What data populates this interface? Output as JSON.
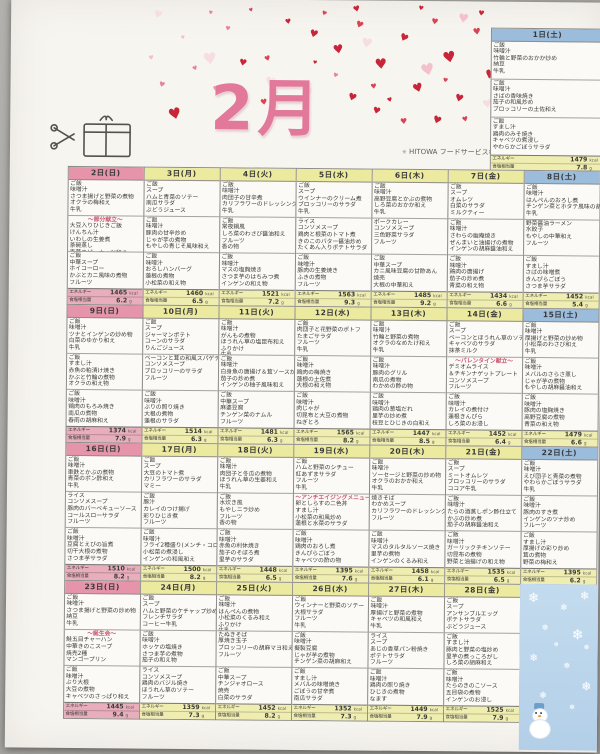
{
  "meta": {
    "month_title": "2月",
    "company": "HITOWA フードサービス株式会社"
  },
  "labels": {
    "energy": "エネルギー",
    "salt": "食塩相当量",
    "kcal": "kcal",
    "g": "g"
  },
  "colors": {
    "sunday_header": "#e594aa",
    "weekday_header": "#ecea9e",
    "saturday_header": "#9cbcdc",
    "sunday_strip": "#e9aebc",
    "weekday_strip": "#efedb0",
    "special_text": "#c9556f",
    "heart_red": "#c82538",
    "title_pink": "#e2799b",
    "snow_blue": "#b3cfe8"
  },
  "standalone_day": {
    "label": "1日(土)",
    "type": "saturday",
    "energy": "1479",
    "salt": "7.8",
    "meals": [
      [
        "ご飯",
        "味噌汁",
        "竹輪と野菜のおかか炒め",
        "納豆",
        "牛乳"
      ],
      [
        "ご飯",
        "味噌汁",
        "さばの香味焼き",
        "茄子の和風炒め",
        "ブロッコリーの土佐和え"
      ],
      [
        "ご飯",
        "すまし汁",
        "鶏肉のみそ焼き",
        "キャベツの煮浸し",
        "やわらかごぼうサラダ"
      ]
    ]
  },
  "weeks": [
    [
      {
        "label": "2日(日)",
        "type": "sunday",
        "energy": "1465",
        "salt": "6.2",
        "meals": [
          [
            "ご飯",
            "味噌汁",
            "さつま揚げと野菜の煮物",
            "オクラの梅和え",
            "牛乳"
          ],
          [
            "～節分献立～",
            "大豆入りひじきご飯",
            "けんちん汁",
            "いわしの生姜煮",
            "茶碗蒸し",
            "青菜のピーナッツ和え"
          ],
          [
            "ご飯",
            "中華スープ",
            "ホイコーロー",
            "かぶとカニ風味の煮物",
            "フルーツ"
          ]
        ]
      },
      {
        "label": "3日(月)",
        "type": "weekday",
        "energy": "1460",
        "salt": "6.5",
        "meals": [
          [
            "ご飯",
            "スープ",
            "ハムと青菜のソテー",
            "南瓜サラダ",
            "ぶどうジュース"
          ],
          [
            "ご飯",
            "味噌汁",
            "豚肉の甘辛炒め",
            "じゃが芋の煮物",
            "もやしの青じそ風味和え"
          ],
          [
            "ご飯",
            "味噌汁",
            "おろしハンバーグ",
            "蓮根の煮物",
            "小松菜の和え物"
          ]
        ]
      },
      {
        "label": "4日(火)",
        "type": "weekday",
        "energy": "1521",
        "salt": "7.2",
        "meals": [
          [
            "ご飯",
            "味噌汁",
            "肉団子の甘辛煮",
            "カリフラワーのドレッシング和え",
            "牛乳"
          ],
          [
            "ご飯",
            "常夜鍋風",
            "しろ菜のわさび醤油和え",
            "フルーツ",
            "香の物"
          ],
          [
            "ご飯",
            "味噌汁",
            "マスの塩麹焼き",
            "さつま芋のはちみつ煮",
            "インゲンの和え物"
          ]
        ]
      },
      {
        "label": "5日(水)",
        "type": "weekday",
        "energy": "1563",
        "salt": "9.3",
        "meals": [
          [
            "ご飯",
            "スープ",
            "ウインナーのクリーム煮",
            "ブロッコリーのサラダ",
            "牛乳"
          ],
          [
            "ライス",
            "コンソメスープ",
            "鶏肉と根菜のトマト煮",
            "きのこのバター醤油炒め",
            "たくあん入りポテトサラダ"
          ],
          [
            "ご飯",
            "味噌汁",
            "豚肉の生姜焼き",
            "ふきの煮物",
            "フルーツ"
          ]
        ]
      },
      {
        "label": "6日(木)",
        "type": "weekday",
        "energy": "1485",
        "salt": "9.2",
        "meals": [
          [
            "ご飯",
            "味噌汁",
            "高野豆腐とかぶの煮物",
            "しろ菜のおかか和え",
            "牛乳"
          ],
          [
            "ポークカレー",
            "コンソメスープ",
            "三色野菜サラダ",
            "フルーツ"
          ],
          [
            "ご飯",
            "中華スープ",
            "カニ風味豆腐の甘酢あん",
            "焼売",
            "大根の中華和え"
          ]
        ]
      },
      {
        "label": "7日(金)",
        "type": "weekday",
        "energy": "1434",
        "salt": "6.6",
        "meals": [
          [
            "ご飯",
            "スープ",
            "オムレツ",
            "白菜のサラダ",
            "ミルクティー"
          ],
          [
            "ご飯",
            "味噌汁",
            "さわらの幽庵焼き",
            "ぜんまいと油揚げの煮物",
            "インゲンの胡麻醤油和え"
          ],
          [
            "ご飯",
            "味噌汁",
            "鶏肉の唐揚げ",
            "茄子の炒め煮",
            "青菜の和え物"
          ]
        ]
      },
      {
        "label": "8日(土)",
        "type": "saturday",
        "energy": "1452",
        "salt": "5.4",
        "meals": [
          [
            "ご飯",
            "味噌汁",
            "はんぺんのおろし煮",
            "チンゲン菜とホタテ風味の胡麻和え",
            "牛乳"
          ],
          [
            "野菜醤油ラーメン",
            "水餃子",
            "もやしの中華和え",
            "フルーツ"
          ],
          [
            "ご飯",
            "すまし汁",
            "さばの味噌煮",
            "きんぴらごぼう",
            "さつま芋サラダ"
          ]
        ]
      }
    ],
    [
      {
        "label": "9日(日)",
        "type": "sunday",
        "energy": "1374",
        "salt": "7.9",
        "meals": [
          [
            "ご飯",
            "味噌汁",
            "ツナとインゲンの炒め物",
            "白菜のゆかり和え",
            "牛乳"
          ],
          [
            "ご飯",
            "すまし汁",
            "赤魚の粕漬け焼き",
            "かぶと竹輪の煮物",
            "オクラの和え物"
          ],
          [
            "ご飯",
            "味噌汁",
            "鶏肉のもろみ焼き",
            "南瓜の煮物",
            "春雨の胡麻和え"
          ]
        ]
      },
      {
        "label": "10日(月)",
        "type": "weekday",
        "energy": "1514",
        "salt": "6.3",
        "meals": [
          [
            "ご飯",
            "スープ",
            "ジャーマンポテト",
            "コーンのサラダ",
            "りんごジュース"
          ],
          [
            "ベーコンと茸の和風スパゲティー",
            "コンソメスープ",
            "ブロッコリーのサラダ",
            "フルーツ"
          ],
          [
            "ご飯",
            "味噌汁",
            "ぶりの照り焼き",
            "大根の煮物",
            "蓮根のサラダ"
          ]
        ]
      },
      {
        "label": "11日(火)",
        "type": "weekday",
        "energy": "1481",
        "salt": "6.3",
        "meals": [
          [
            "ご飯",
            "味噌汁",
            "がんもの煮物",
            "ほうれん草の塩昆布和え",
            "ふりかけ",
            "牛乳"
          ],
          [
            "ご飯",
            "味噌汁",
            "白身魚の唐揚げ＆茸ソースがけ",
            "茄子の炒め煮",
            "インゲンの柚子風味和え"
          ],
          [
            "ご飯",
            "中華スープ",
            "麻婆豆腐",
            "チンゲン菜のナムル",
            "フルーツ"
          ]
        ]
      },
      {
        "label": "12日(水)",
        "type": "weekday",
        "energy": "1565",
        "salt": "8.2",
        "meals": [
          [
            "ご飯",
            "肉団子と花野菜のポトフ",
            "たまごサラダ",
            "フルーツ",
            "牛乳"
          ],
          [
            "ご飯",
            "味噌汁",
            "鶏肉の梅焼き",
            "蓮根の土佐煮",
            "大根の和え物"
          ],
          [
            "ご飯",
            "味噌汁",
            "肉じゃが",
            "切昆布と大豆の煮物",
            "ねぎとろ"
          ]
        ]
      },
      {
        "label": "13日(木)",
        "type": "weekday",
        "energy": "1447",
        "salt": "8.5",
        "meals": [
          [
            "ご飯",
            "味噌汁",
            "竹輪と野菜の煮物",
            "オクラのなめたけ和え",
            "牛乳"
          ],
          [
            "ご飯",
            "味噌汁",
            "豚肉のグリル",
            "南瓜の煮物",
            "わかめの酢の物"
          ],
          [
            "ご飯",
            "味噌汁",
            "鶏肉の葱塩だれ",
            "里芋の炒め煮",
            "枝豆とひじきの白和え"
          ]
        ]
      },
      {
        "label": "14日(金)",
        "type": "weekday",
        "energy": "1452",
        "salt": "6.4",
        "meals": [
          [
            "ご飯",
            "スープ",
            "ベーコンとほうれん草のソテー",
            "キャベツのサラダ",
            "抹茶ミルク"
          ],
          [
            "～バレンタイン献立～",
            "デミオムライス",
            "＆チキンナゲットプレート",
            "コンソメスープ",
            "フルーツ"
          ],
          [
            "ご飯",
            "味噌汁",
            "カレイの煮付け",
            "蓮根きんぴら",
            "しろ菜のお浸し"
          ]
        ]
      },
      {
        "label": "15日(土)",
        "type": "saturday",
        "energy": "1479",
        "salt": "6.6",
        "meals": [
          [
            "ご飯",
            "味噌汁",
            "厚揚げと野菜の炒め物",
            "小松菜のわさび和え",
            "牛乳"
          ],
          [
            "ご飯",
            "味噌汁",
            "メバルのさらさ蒸し",
            "じゃが芋の煮物",
            "もやしの胡麻醤油和え"
          ],
          [
            "ご飯",
            "味噌汁",
            "豚肉の塩麹焼き",
            "高野豆腐の煮物",
            "青菜の和え物"
          ]
        ]
      }
    ],
    [
      {
        "label": "16日(日)",
        "type": "sunday",
        "energy": "1510",
        "salt": "8.2",
        "meals": [
          [
            "ご飯",
            "味噌汁",
            "車麩とかぶの煮物",
            "青菜のポン酢和え",
            "牛乳"
          ],
          [
            "ライス",
            "コンソメスープ",
            "豚肉のバーベキューソース",
            "コールスローサラダ",
            "フルーツ"
          ],
          [
            "ご飯",
            "味噌汁",
            "豆腐とえびの旨煮",
            "切干大根の煮物",
            "さつま芋サラダ"
          ]
        ]
      },
      {
        "label": "17日(月)",
        "type": "weekday",
        "energy": "1500",
        "salt": "8.2",
        "meals": [
          [
            "ご飯",
            "スープ",
            "大豆のトマト煮",
            "カリフラワーのサラダ",
            "マミー"
          ],
          [
            "ご飯",
            "豚汁",
            "カレイのつけ揚げ",
            "彩りひじき煮",
            "フルーツ"
          ],
          [
            "ご飯",
            "味噌汁",
            "フライ2種盛り(メンチ・コロッケ)",
            "小松菜の煮浸し",
            "インゲンの和風和え"
          ]
        ]
      },
      {
        "label": "18日(火)",
        "type": "weekday",
        "energy": "1448",
        "salt": "6.5",
        "meals": [
          [
            "ご飯",
            "味噌汁",
            "肉団子と冬瓜の煮物",
            "ほうれん草の生姜和え",
            "牛乳"
          ],
          [
            "ご飯",
            "水炊き風",
            "もやしニラ炒め",
            "フルーツ",
            "香の物"
          ],
          [
            "ご飯",
            "味噌汁",
            "赤魚の利休焼き",
            "茄子のそぼろ煮",
            "里芋のサラダ"
          ]
        ]
      },
      {
        "label": "19日(水)",
        "type": "weekday",
        "energy": "1395",
        "salt": "7.6",
        "meals": [
          [
            "ご飯",
            "ハムと野菜のシチュー",
            "紅あずまサラダ",
            "フルーツ",
            "牛乳"
          ],
          [
            "～アンチエイジングメニュー～",
            "卵としらすの二色丼",
            "すまし汁",
            "小松菜の和風炒め",
            "蓮根と水菜のサラダ"
          ],
          [
            "ご飯",
            "味噌汁",
            "鶏肉のおろし煮",
            "きんぴらごぼう",
            "キャベツの酢の物"
          ]
        ]
      },
      {
        "label": "20日(木)",
        "type": "weekday",
        "energy": "1458",
        "salt": "6.1",
        "meals": [
          [
            "ご飯",
            "味噌汁",
            "ソーセージと野菜の炒め物",
            "オクラのおかか和え",
            "牛乳"
          ],
          [
            "焼きそば",
            "わかめスープ",
            "カリフラワーのドレッシング和え",
            "フルーツ"
          ],
          [
            "ご飯",
            "味噌汁",
            "マスのタルタルソース焼き",
            "里芋の煮物",
            "インゲンのくるみ和え"
          ]
        ]
      },
      {
        "label": "21日(金)",
        "type": "weekday",
        "energy": "1535",
        "salt": "6.5",
        "meals": [
          [
            "ご飯",
            "スープ",
            "ミートオムレツ",
            "ブロッコリーのサラダ",
            "ココア牛乳"
          ],
          [
            "ご飯",
            "味噌汁",
            "たらの酒蒸しポン酢仕立て",
            "かぶの炒め煮",
            "茄子の胡麻醤油和え"
          ],
          [
            "ご飯",
            "味噌汁",
            "ガーリックチキンソテー",
            "切昆布の煮物",
            "野菜と油揚げの和え物"
          ]
        ]
      },
      {
        "label": "22日(土)",
        "type": "saturday",
        "energy": "1395",
        "salt": "6.2",
        "meals": [
          [
            "ご飯",
            "味噌汁",
            "えび団子と青菜の煮物",
            "やわらかごぼうサラダ",
            "牛乳"
          ],
          [
            "ご飯",
            "味噌汁",
            "豚肉のすき煮",
            "インゲンのツナ炒め",
            "フルーツ"
          ],
          [
            "ご飯",
            "すまし汁",
            "厚揚げの彩り炒め",
            "茸の煮物",
            "野菜の梅和え"
          ]
        ]
      }
    ],
    [
      {
        "label": "23日(日)",
        "type": "sunday",
        "energy": "1445",
        "salt": "9.4",
        "meals": [
          [
            "ご飯",
            "味噌汁",
            "さつま揚げと野菜の炒め物",
            "納豆",
            "牛乳"
          ],
          [
            "～誕生会～",
            "鮭五目チャーハン",
            "中華きのこスープ",
            "焼売2種",
            "マンゴープリン"
          ],
          [
            "ご飯",
            "味噌汁",
            "ぶり大根",
            "大豆の煮物",
            "キャベツのさっぱり和え"
          ]
        ]
      },
      {
        "label": "24日(月)",
        "type": "weekday",
        "energy": "1359",
        "salt": "7.3",
        "meals": [
          [
            "ご飯",
            "スープ",
            "ハムと野菜のケチャップ炒め",
            "フレンチサラダ",
            "コーヒー牛乳"
          ],
          [
            "ご飯",
            "味噌汁",
            "ホッケの塩焼き",
            "さつま芋の煮物",
            "茄子の和え物"
          ],
          [
            "ライス",
            "コンソメスープ",
            "鶏肉のバジル焼き",
            "ほうれん草のソテー",
            "フルーツ"
          ]
        ]
      },
      {
        "label": "25日(火)",
        "type": "weekday",
        "energy": "1452",
        "salt": "8.2",
        "meals": [
          [
            "ご飯",
            "味噌汁",
            "はんぺんの煮物",
            "小松菜のくるみ和え",
            "ふりかけ",
            "牛乳"
          ],
          [
            "たぬきそば",
            "厚焼き玉子",
            "ブロッコリーの胡麻マヨ和え",
            "フルーツ"
          ],
          [
            "ご飯",
            "中華スープ",
            "チンジャオロース",
            "焼売",
            "白菜のサラダ"
          ]
        ]
      },
      {
        "label": "26日(水)",
        "type": "weekday",
        "energy": "1352",
        "salt": "7.3",
        "meals": [
          [
            "ご飯",
            "ウィンナーと野菜のソテー",
            "大根サラダ",
            "フルーツ",
            "牛乳"
          ],
          [
            "ご飯",
            "味噌汁",
            "擬製豆腐",
            "じゃが芋の煮物",
            "チンゲン菜の胡麻和え"
          ],
          [
            "ご飯",
            "すまし汁",
            "メバルの味噌焼き",
            "ごぼうの甘辛煮",
            "南瓜サラダ"
          ]
        ]
      },
      {
        "label": "27日(木)",
        "type": "weekday",
        "energy": "1449",
        "salt": "7.9",
        "meals": [
          [
            "ご飯",
            "味噌汁",
            "厚揚げと野菜の煮物",
            "キャベツの和風和え",
            "牛乳"
          ],
          [
            "ライス",
            "スープ",
            "あじの香草パン粉焼き",
            "ポテトサラダ",
            "フルーツ"
          ],
          [
            "ご飯",
            "味噌汁",
            "鶏肉の照り焼き",
            "ひじきの煮物",
            "なます"
          ]
        ]
      },
      {
        "label": "28日(金)",
        "type": "weekday",
        "energy": "1525",
        "salt": "7.9",
        "meals": [
          [
            "ご飯",
            "スープ",
            "アンサンブルエッグ",
            "ポテトサラダ",
            "ぶどうジュース"
          ],
          [
            "ご飯",
            "すまし汁",
            "豚肉と野菜の塩炒め",
            "里芋の煮っころがし",
            "しろ菜の胡麻和え"
          ],
          [
            "ご飯",
            "味噌汁",
            "たらのきのこソース",
            "五目袋の煮物",
            "インゲンのお浸し"
          ]
        ]
      }
    ]
  ]
}
